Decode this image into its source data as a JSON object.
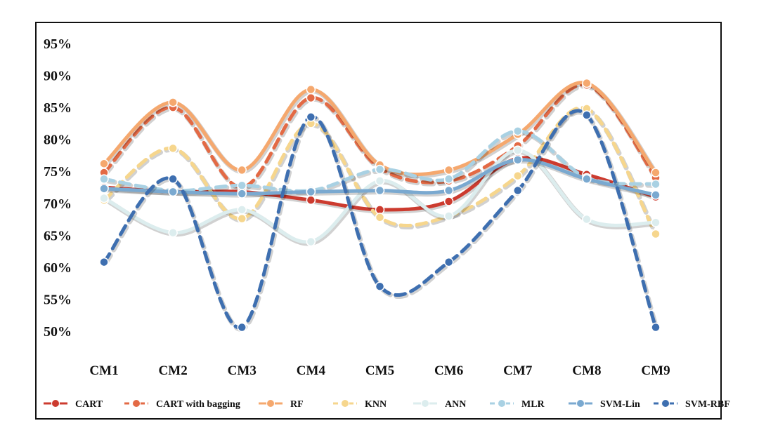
{
  "chart_data": {
    "type": "line",
    "title": "",
    "xlabel": "",
    "ylabel": "",
    "categories": [
      "CM1",
      "CM2",
      "CM3",
      "CM4",
      "CM5",
      "CM6",
      "CM7",
      "CM8",
      "CM9"
    ],
    "ylim": [
      50,
      95
    ],
    "yticks": [
      50,
      55,
      60,
      65,
      70,
      75,
      80,
      85,
      90,
      95
    ],
    "ytick_labels": [
      "50%",
      "55%",
      "60%",
      "65%",
      "70%",
      "75%",
      "80%",
      "85%",
      "90%",
      "95%"
    ],
    "grid": false,
    "legend_position": "bottom",
    "series": [
      {
        "name": "CART",
        "color": "#cc3b2f",
        "dash": "solid",
        "values": [
          72.5,
          71.8,
          71.8,
          70.5,
          69.0,
          70.3,
          77.0,
          74.5,
          71.0
        ]
      },
      {
        "name": "CART with bagging",
        "color": "#e36a45",
        "dash": "dashed",
        "values": [
          74.8,
          85.0,
          72.5,
          86.5,
          75.5,
          73.5,
          79.0,
          88.5,
          74.0
        ]
      },
      {
        "name": "RF",
        "color": "#f5a86e",
        "dash": "solid",
        "values": [
          76.2,
          85.8,
          75.2,
          87.8,
          76.0,
          75.2,
          80.8,
          88.8,
          74.8
        ]
      },
      {
        "name": "KNN",
        "color": "#f6d68d",
        "dash": "dashed",
        "values": [
          70.5,
          78.6,
          67.6,
          82.5,
          67.8,
          68.0,
          74.3,
          84.8,
          65.2
        ]
      },
      {
        "name": "ANN",
        "color": "#dcedee",
        "dash": "solid",
        "values": [
          70.8,
          65.4,
          69.0,
          64.0,
          73.5,
          68.0,
          78.3,
          67.5,
          67.0
        ]
      },
      {
        "name": "MLR",
        "color": "#a9d1e3",
        "dash": "dashed",
        "values": [
          73.8,
          72.0,
          72.8,
          72.0,
          75.3,
          73.8,
          81.3,
          74.0,
          73.0
        ]
      },
      {
        "name": "SVM-Lin",
        "color": "#7aa9d0",
        "dash": "solid",
        "values": [
          72.3,
          71.8,
          71.5,
          71.8,
          72.0,
          72.0,
          76.8,
          73.8,
          71.3
        ]
      },
      {
        "name": "SVM-RBF",
        "color": "#3e6fb0",
        "dash": "dashed",
        "values": [
          60.8,
          73.8,
          50.6,
          83.5,
          57.0,
          60.8,
          72.0,
          83.8,
          50.6
        ]
      }
    ]
  }
}
